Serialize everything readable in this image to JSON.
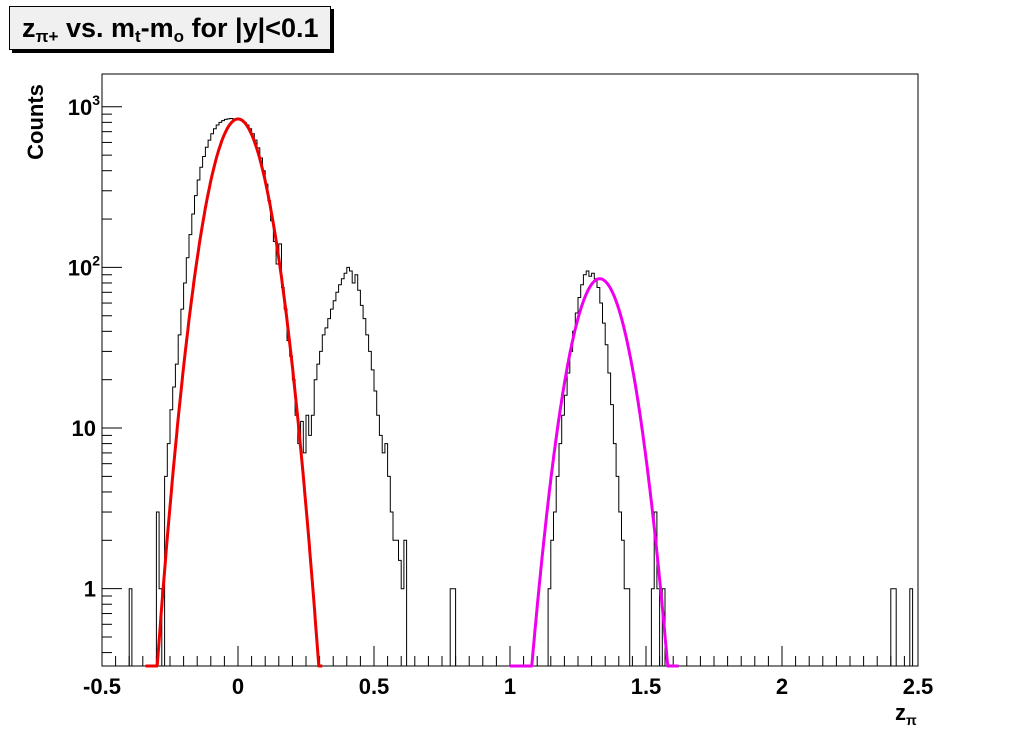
{
  "chart_data": {
    "type": "histogram",
    "title": {
      "main": "z",
      "main_sub": "π+",
      "mid": " vs. m",
      "mid_sub": "t",
      "mid2": "-m",
      "mid2_sub": "o",
      "rest": " for |y|<0.1"
    },
    "xlabel": {
      "main": "z",
      "sub": "π"
    },
    "ylabel": "Counts",
    "xlim": [
      -0.5,
      2.5
    ],
    "ylim": [
      0.33,
      1600
    ],
    "yscale": "log",
    "grid": false,
    "x_ticks": [
      {
        "value": -0.5,
        "label": "-0.5"
      },
      {
        "value": 0,
        "label": "0"
      },
      {
        "value": 0.5,
        "label": "0.5"
      },
      {
        "value": 1,
        "label": "1"
      },
      {
        "value": 1.5,
        "label": "1.5"
      },
      {
        "value": 2,
        "label": "2"
      },
      {
        "value": 2.5,
        "label": "2.5"
      }
    ],
    "y_ticks": [
      {
        "value": 1,
        "base": "1",
        "exp": ""
      },
      {
        "value": 10,
        "base": "10",
        "exp": ""
      },
      {
        "value": 100,
        "base": "10",
        "exp": "2"
      },
      {
        "value": 1000,
        "base": "10",
        "exp": "3"
      }
    ],
    "histogram": {
      "name": "",
      "color": "#000000",
      "bins": [
        [
          -0.4,
          1
        ],
        [
          -0.3,
          3
        ],
        [
          -0.29,
          1
        ],
        [
          -0.27,
          5
        ],
        [
          -0.26,
          8
        ],
        [
          -0.25,
          13
        ],
        [
          -0.24,
          18
        ],
        [
          -0.23,
          25
        ],
        [
          -0.22,
          38
        ],
        [
          -0.21,
          55
        ],
        [
          -0.2,
          80
        ],
        [
          -0.19,
          115
        ],
        [
          -0.18,
          160
        ],
        [
          -0.17,
          215
        ],
        [
          -0.16,
          280
        ],
        [
          -0.15,
          350
        ],
        [
          -0.14,
          420
        ],
        [
          -0.13,
          490
        ],
        [
          -0.12,
          560
        ],
        [
          -0.11,
          620
        ],
        [
          -0.1,
          680
        ],
        [
          -0.09,
          730
        ],
        [
          -0.08,
          770
        ],
        [
          -0.07,
          800
        ],
        [
          -0.06,
          820
        ],
        [
          -0.05,
          835
        ],
        [
          -0.04,
          840
        ],
        [
          -0.03,
          845
        ],
        [
          -0.02,
          840
        ],
        [
          -0.01,
          835
        ],
        [
          0.0,
          830
        ],
        [
          0.01,
          820
        ],
        [
          0.02,
          800
        ],
        [
          0.03,
          770
        ],
        [
          0.04,
          730
        ],
        [
          0.05,
          680
        ],
        [
          0.06,
          620
        ],
        [
          0.07,
          555
        ],
        [
          0.08,
          480
        ],
        [
          0.09,
          400
        ],
        [
          0.1,
          330
        ],
        [
          0.11,
          260
        ],
        [
          0.12,
          195
        ],
        [
          0.13,
          145
        ],
        [
          0.14,
          105
        ],
        [
          0.15,
          140
        ],
        [
          0.16,
          75
        ],
        [
          0.17,
          55
        ],
        [
          0.18,
          35
        ],
        [
          0.19,
          28
        ],
        [
          0.2,
          20
        ],
        [
          0.21,
          12
        ],
        [
          0.22,
          8
        ],
        [
          0.23,
          11
        ],
        [
          0.24,
          7
        ],
        [
          0.25,
          12
        ],
        [
          0.26,
          9
        ],
        [
          0.27,
          12
        ],
        [
          0.28,
          20
        ],
        [
          0.29,
          25
        ],
        [
          0.3,
          30
        ],
        [
          0.31,
          38
        ],
        [
          0.32,
          42
        ],
        [
          0.33,
          48
        ],
        [
          0.34,
          55
        ],
        [
          0.35,
          62
        ],
        [
          0.36,
          70
        ],
        [
          0.37,
          78
        ],
        [
          0.38,
          85
        ],
        [
          0.39,
          92
        ],
        [
          0.4,
          100
        ],
        [
          0.41,
          95
        ],
        [
          0.42,
          80
        ],
        [
          0.43,
          90
        ],
        [
          0.44,
          72
        ],
        [
          0.45,
          58
        ],
        [
          0.46,
          48
        ],
        [
          0.47,
          38
        ],
        [
          0.48,
          30
        ],
        [
          0.49,
          23
        ],
        [
          0.5,
          17
        ],
        [
          0.51,
          12
        ],
        [
          0.52,
          9
        ],
        [
          0.53,
          7
        ],
        [
          0.54,
          8
        ],
        [
          0.55,
          5
        ],
        [
          0.56,
          3
        ],
        [
          0.57,
          2
        ],
        [
          0.58,
          2
        ],
        [
          0.59,
          1.5
        ],
        [
          0.6,
          1
        ],
        [
          0.61,
          2
        ],
        [
          0.78,
          1
        ],
        [
          0.79,
          1
        ],
        [
          1.14,
          1
        ],
        [
          1.15,
          2
        ],
        [
          1.16,
          3
        ],
        [
          1.17,
          5
        ],
        [
          1.18,
          8
        ],
        [
          1.19,
          12
        ],
        [
          1.2,
          16
        ],
        [
          1.21,
          22
        ],
        [
          1.22,
          30
        ],
        [
          1.23,
          40
        ],
        [
          1.24,
          52
        ],
        [
          1.25,
          65
        ],
        [
          1.26,
          78
        ],
        [
          1.27,
          90
        ],
        [
          1.28,
          95
        ],
        [
          1.29,
          88
        ],
        [
          1.3,
          92
        ],
        [
          1.31,
          85
        ],
        [
          1.32,
          75
        ],
        [
          1.33,
          60
        ],
        [
          1.34,
          45
        ],
        [
          1.35,
          33
        ],
        [
          1.36,
          22
        ],
        [
          1.37,
          14
        ],
        [
          1.38,
          8
        ],
        [
          1.39,
          5
        ],
        [
          1.4,
          3
        ],
        [
          1.41,
          2
        ],
        [
          1.42,
          1
        ],
        [
          1.43,
          1
        ],
        [
          1.52,
          1
        ],
        [
          1.53,
          3
        ],
        [
          1.54,
          1
        ],
        [
          1.56,
          1
        ],
        [
          2.4,
          1
        ],
        [
          2.41,
          1
        ],
        [
          2.47,
          1
        ]
      ]
    },
    "fits": [
      {
        "name": "",
        "color": "#ee0000",
        "kind": "gaussian",
        "amplitude": 840,
        "mean": 0.0,
        "sigma": 0.075,
        "range": [
          -0.34,
          0.31
        ]
      },
      {
        "name": "",
        "color": "#ee00ee",
        "kind": "gaussian",
        "amplitude": 85,
        "mean": 1.33,
        "sigma": 0.075,
        "range": [
          1.0,
          1.62
        ]
      }
    ]
  }
}
